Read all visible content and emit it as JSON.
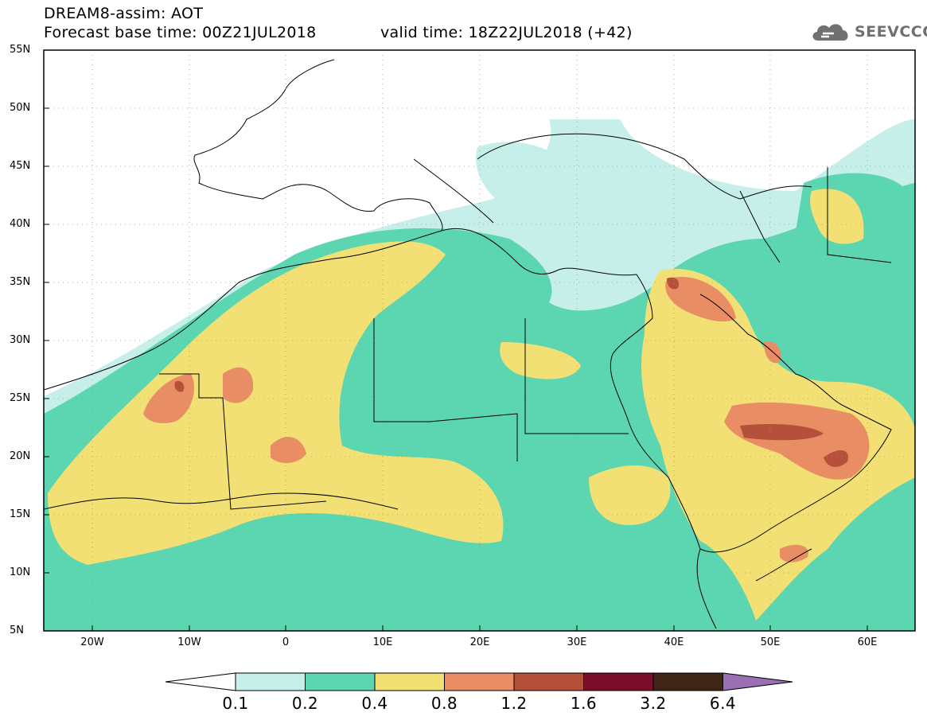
{
  "header": {
    "title_line1": "DREAM8-assim: AOT",
    "title_line2": "Forecast base time: 00Z21JUL2018",
    "valid_time": "valid time: 18Z22JUL2018 (+42)"
  },
  "logo": {
    "text": "SEEVCCC",
    "icon": "cloud-icon",
    "color": "#707070"
  },
  "map": {
    "lat_labels": [
      "55N",
      "50N",
      "45N",
      "40N",
      "35N",
      "30N",
      "25N",
      "20N",
      "15N",
      "10N",
      "5N"
    ],
    "lon_labels": [
      "20W",
      "10W",
      "0",
      "10E",
      "20E",
      "30E",
      "40E",
      "50E",
      "60E"
    ],
    "extent": {
      "lon_min": -25,
      "lon_max": 65,
      "lat_min": 5,
      "lat_max": 55
    }
  },
  "colorbar": {
    "levels": [
      "0.1",
      "0.2",
      "0.4",
      "0.8",
      "1.2",
      "1.6",
      "3.2",
      "6.4"
    ],
    "colors": [
      "#c6efe9",
      "#5cd6b0",
      "#f2e074",
      "#e88d64",
      "#b5503a",
      "#7a0e2b",
      "#3e2516",
      "#9b6fb3"
    ]
  }
}
